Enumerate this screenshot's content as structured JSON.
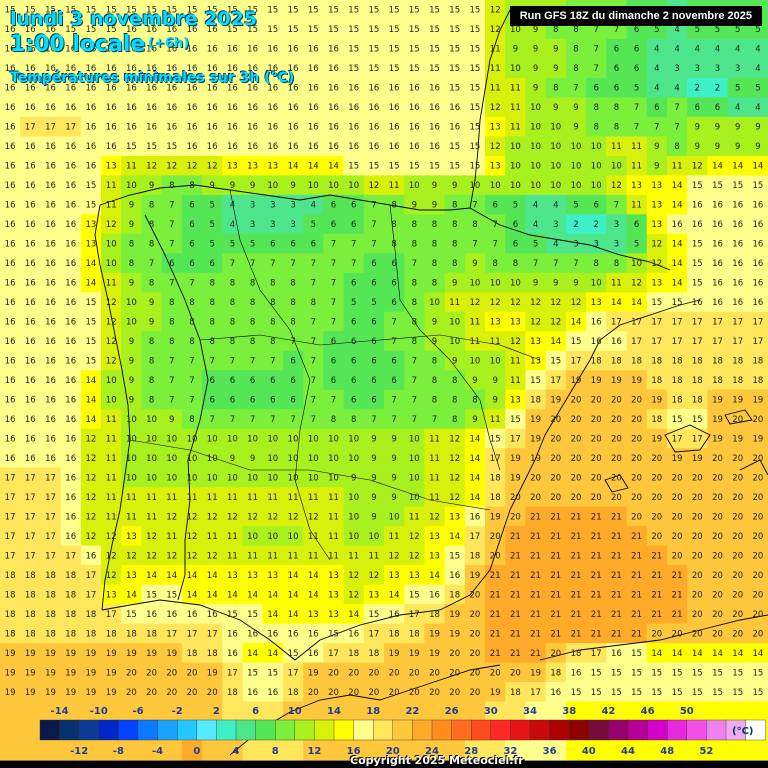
{
  "header": {
    "date": "lundi 3 novembre 2025",
    "time": "1:00 locale",
    "offset": "(+6h)",
    "subtitle": "Températures minimales sur 3h (°C)"
  },
  "run_info": "Run GFS 18Z du dimanche 2 novembre 2025",
  "copyright": "Copyright 2025 Meteociel.fr",
  "legend": {
    "unit": "(°C)",
    "top_labels": [
      "-14",
      "-10",
      "-6",
      "-2",
      "2",
      "6",
      "10",
      "14",
      "18",
      "22",
      "26",
      "30",
      "34",
      "38",
      "42",
      "46",
      "50"
    ],
    "bottom_labels": [
      "-12",
      "-8",
      "-4",
      "0",
      "4",
      "8",
      "12",
      "16",
      "20",
      "24",
      "28",
      "32",
      "36",
      "40",
      "44",
      "48",
      "52"
    ],
    "colors": [
      "#0a1a4a",
      "#06306e",
      "#0a3c96",
      "#0028c8",
      "#0044ff",
      "#0a78ff",
      "#1aa0ff",
      "#22c8ff",
      "#55e8ff",
      "#3ef0c8",
      "#4ee68c",
      "#55e655",
      "#7af03c",
      "#a8f01e",
      "#d8f00a",
      "#ffff00",
      "#ffff8c",
      "#ffe65a",
      "#ffc83c",
      "#ffaa28",
      "#ff8c1e",
      "#ff6e1e",
      "#ff4a1e",
      "#ff2828",
      "#e61414",
      "#c80a0a",
      "#aa0000",
      "#8c0000",
      "#780a3c",
      "#96006e",
      "#b40096",
      "#d200c8",
      "#e828dc",
      "#f050e6",
      "#f082f0",
      "#f0aaf0",
      "#ffffff"
    ]
  },
  "temperature_grid": [
    "15 15 15 15 15 15 15 15 15 15 15 15 15 15 15 15 15 15 15 15 15 15 15 15 12 10 9 9 8 7 7 6 5 4 5 5 5 5",
    "16 16 16 15 15 15 16 16 16 16 16 15 15 15 15 15 15 15 15 15 15 15 15 15 12 10 9 8 8 7 7 6 5 4 5 5 5 5",
    "16 16 16 16 16 16 16 16 16 16 16 16 16 16 16 16 16 15 15 15 15 15 15 15 11 9 9 9 8 7 6 6 4 4 4 4 4 4",
    "16 16 16 16 16 16 16 16 16 16 16 16 16 16 16 16 16 15 15 15 15 15 15 15 11 10 9 9 8 7 6 6 4 3 3 3 3 4",
    "16 16 16 16 16 16 16 16 16 16 16 16 16 16 16 16 16 16 16 16 16 16 15 15 11 11 9 8 7 6 6 5 4 4 2 2 5 5",
    "16 16 16 16 16 16 16 16 16 16 16 16 16 16 16 16 16 16 16 16 16 16 16 15 12 11 10 9 9 8 8 7 6 7 6 6 4 4",
    "16 17 17 17 16 16 16 16 16 16 16 16 16 16 16 16 16 16 16 16 16 16 16 15 13 11 10 10 9 8 8 7 7 7 9 9 9 9",
    "16 16 16 16 16 16 15 15 15 16 16 16 16 16 16 16 16 16 16 16 16 16 15 15 12 10 10 10 10 10 11 11 9 8 9 9 9 9",
    "16 16 16 16 16 13 11 12 12 12 12 13 13 13 14 14 14 15 15 15 15 15 15 15 13 10 10 10 10 10 10 11 9 11 12 14 14 14",
    "16 16 16 16 15 11 10 9 8 8 9 9 9 10 9 10 10 10 12 11 10 9 9 10 10 10 10 10 10 10 12 13 13 14 15 15 15 15",
    "16 16 16 16 15 11 9 8 7 6 5 4 3 3 3 4 6 6 7 8 9 9 8 7 6 5 4 4 5 6 7 11 13 14 16 16 16 16",
    "16 16 16 16 13 12 9 8 7 6 5 4 3 3 3 5 6 6 7 8 8 8 8 8 7 6 4 3 2 2 3 6 13 16 16 16 16 16",
    "16 16 16 16 13 10 8 8 7 6 5 5 5 6 6 6 7 7 7 8 8 8 8 7 7 6 5 4 3 3 3 5 12 14 15 16 16 16",
    "16 16 16 16 14 10 8 7 6 6 6 7 7 7 7 7 7 7 6 6 7 8 8 9 8 8 7 7 7 8 8 10 12 14 15 16 16 16",
    "16 16 16 16 14 11 9 8 7 7 8 8 8 8 8 7 7 6 6 6 8 8 9 10 10 10 9 9 9 10 11 12 13 14 15 16 16 16",
    "16 16 16 16 15 12 10 9 8 8 8 8 8 8 8 8 7 5 5 6 8 10 11 12 12 12 12 12 12 13 14 14 15 15 16 16 16 16",
    "16 16 16 16 15 12 10 9 8 8 8 8 8 8 8 7 7 6 6 7 8 9 10 11 13 13 12 12 14 16 17 17 17 17 17 17 17 17",
    "16 16 16 16 15 12 9 8 8 8 8 8 8 8 7 7 6 6 6 7 8 9 10 11 11 12 13 14 15 16 16 17 17 17 17 17 17 17",
    "16 16 16 16 15 12 9 8 7 7 7 7 7 7 6 7 6 6 6 6 7 8 9 10 10 11 13 15 17 18 18 18 18 18 18 18 18 18",
    "16 16 16 16 14 10 9 8 7 7 6 6 6 6 6 7 6 6 6 6 7 8 8 9 9 11 15 17 19 19 19 19 18 18 18 18 18 18",
    "16 16 16 16 14 10 9 8 7 7 6 6 6 6 6 7 7 6 6 7 7 8 8 8 9 13 18 19 20 20 20 20 19 18 18 19 19 19",
    "16 16 16 16 14 11 10 10 9 8 7 7 7 7 7 7 8 8 7 7 7 7 8 9 11 15 19 20 20 20 20 20 18 15 15 19 20 20",
    "16 16 16 16 12 11 10 10 10 10 10 10 10 10 10 10 10 10 9 9 10 11 12 14 15 17 19 20 20 20 20 20 19 17 17 19 19 19",
    "16 16 16 16 12 11 10 10 10 10 10 9 9 10 10 10 10 10 9 9 10 11 12 14 17 19 19 20 20 20 20 20 20 19 19 20 20 20",
    "17 17 17 16 12 11 10 10 10 10 10 10 10 10 10 10 10 9 9 9 10 11 12 14 18 19 20 20 20 20 20 20 20 20 20 20 20 20",
    "17 17 17 16 12 11 11 11 11 11 11 11 11 11 11 11 11 10 9 9 10 11 12 14 18 20 20 20 20 20 20 20 20 20 20 20 20 20",
    "17 17 17 16 12 11 11 11 12 12 12 12 12 12 12 12 11 10 9 10 11 12 13 16 19 20 21 21 21 21 21 20 20 20 20 20 20 20",
    "17 17 17 16 12 12 13 12 11 12 11 11 10 10 10 11 11 10 10 11 12 13 14 17 20 21 21 21 21 21 21 21 20 20 20 20 20 20",
    "17 17 17 17 16 12 12 12 12 12 12 11 11 11 11 11 11 11 11 12 12 13 15 18 20 21 21 21 21 21 21 21 21 20 20 20 20 20",
    "18 18 18 18 17 12 13 14 14 14 14 13 13 13 14 14 13 12 12 13 13 14 16 19 21 21 21 21 21 21 21 21 21 21 20 20 20 20",
    "18 18 18 18 17 13 14 15 15 14 14 14 14 14 14 14 13 12 13 14 15 16 18 20 21 21 21 21 21 21 21 21 21 21 20 20 20 20",
    "18 18 18 18 18 17 15 16 16 16 16 15 15 14 14 13 13 14 15 16 17 18 19 20 21 21 21 21 21 21 21 21 21 21 20 20 20 20",
    "18 18 18 18 18 18 18 18 17 17 17 16 16 16 16 16 15 16 17 18 18 19 19 20 21 21 21 21 21 21 21 21 20 20 20 20 20 20",
    "19 19 19 19 19 19 19 19 19 18 18 16 14 14 15 16 17 18 18 19 19 19 20 20 21 21 21 20 18 17 16 15 14 14 14 14 14 14",
    "19 19 19 19 19 19 20 20 20 20 19 17 15 15 17 19 20 20 20 20 20 20 20 20 20 20 19 18 16 15 15 15 15 15 15 15 15 15",
    "19 19 19 19 19 19 20 20 20 20 20 18 16 16 18 20 20 20 20 20 20 20 20 20 19 18 17 16 15 15 15 15 15 15 15 15 15 15",
    "19 19 19 19 19 19 19 19 19 19 19 18 17 17 19 20 20 20 20 20 20 20 20 19 18 17 16 15 14 14 14 14 14 14 14 14 14 14",
    "20 20 20 20 20 20 20 20 20 20 20 19 18 18 19 20 20 20 20 20 20 20 20 19 18 17 16 15 14 14 14 14 14 14 14 14 14 14",
    "20 20 20 20 20 20 20 20 20 21 20 19 18 17 18 19 20 20 20 20 20 20 19 18 17 16 15 15 14 14 14 14 14 14 14 14 14 14"
  ]
}
